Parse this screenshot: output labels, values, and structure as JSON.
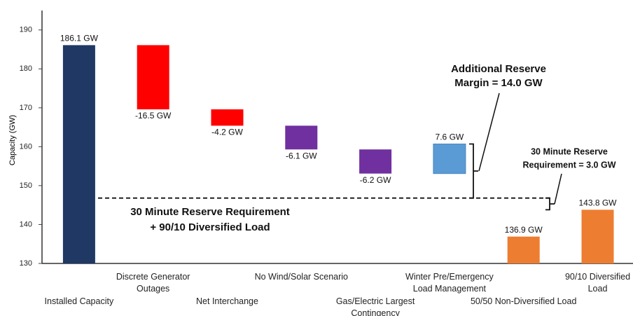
{
  "chart_data": {
    "type": "waterfall",
    "y_label": "Capacity (GW)",
    "categories": [
      "Installed Capacity",
      "Discrete Generator Outages",
      "Net Interchange",
      "No Wind/Solar Scenario",
      "Gas/Electric Largest Contingency",
      "Winter Pre/Emergency Load Management",
      "50/50 Non-Diversified Load",
      "90/10 Diversified Load"
    ],
    "values": [
      186.1,
      -16.5,
      -4.2,
      -6.1,
      -6.2,
      7.6,
      136.9,
      143.8
    ],
    "value_labels": [
      "186.1 GW",
      "-16.5 GW",
      "-4.2 GW",
      "-6.1 GW",
      "-6.2 GW",
      "7.6 GW",
      "136.9 GW",
      "143.8 GW"
    ],
    "measure": [
      "absolute",
      "relative",
      "relative",
      "relative",
      "relative",
      "relative",
      "absolute",
      "absolute"
    ],
    "colors": [
      "#1f3864",
      "#ff0000",
      "#ff0000",
      "#7030a0",
      "#7030a0",
      "#5b9bd5",
      "#ed7d31",
      "#ed7d31"
    ],
    "ylim": [
      130,
      195
    ],
    "yticks": [
      130,
      140,
      150,
      160,
      170,
      180,
      190
    ],
    "reference_line": 146.8,
    "annotations": [
      {
        "lines": [
          "Additional Reserve",
          "Margin = 14.0 GW"
        ]
      },
      {
        "lines": [
          "30 Minute Reserve",
          "Requirement = 3.0 GW"
        ]
      },
      {
        "lines": [
          "30 Minute Reserve Requirement",
          "+ 90/10 Diversified Load"
        ]
      }
    ]
  }
}
